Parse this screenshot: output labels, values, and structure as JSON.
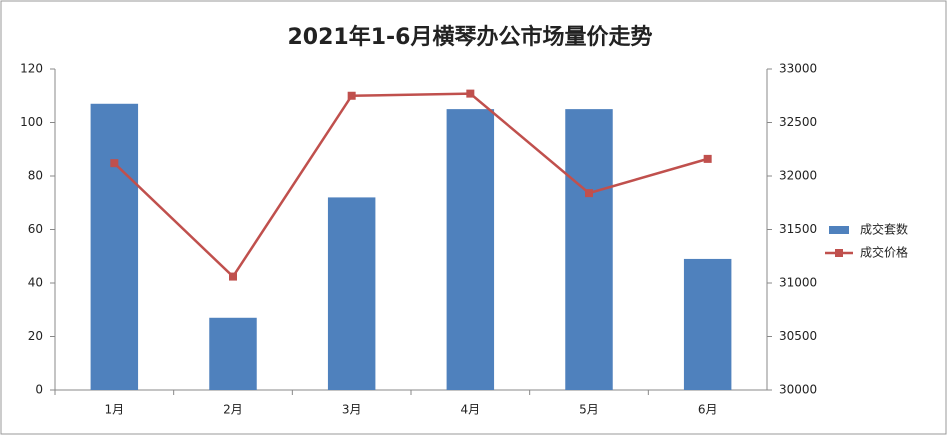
{
  "chart_data": {
    "type": "bar",
    "title": "2021年1-6月横琴办公市场量价走势",
    "categories": [
      "1月",
      "2月",
      "3月",
      "4月",
      "5月",
      "6月"
    ],
    "series": [
      {
        "name": "成交套数",
        "type": "bar",
        "color": "#4f81bd",
        "values": [
          107,
          27,
          72,
          105,
          105,
          49
        ]
      },
      {
        "name": "成交价格",
        "type": "line",
        "axis": "y2",
        "color": "#c0504d",
        "values": [
          32120,
          31060,
          32750,
          32770,
          31840,
          32160
        ]
      }
    ],
    "ylim": [
      0,
      120
    ],
    "yticks": [
      0,
      20,
      40,
      60,
      80,
      100,
      120
    ],
    "y2lim": [
      30000,
      33000
    ],
    "y2ticks": [
      30000,
      30500,
      31000,
      31500,
      32000,
      32500,
      33000
    ],
    "grid": false,
    "legend": "right"
  }
}
